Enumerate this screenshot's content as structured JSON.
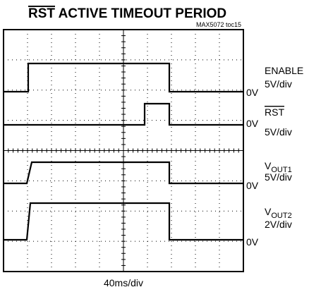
{
  "title": {
    "overlined": "RST",
    "rest": " ACTIVE TIMEOUT PERIOD"
  },
  "note": "MAX5072 toc15",
  "channels": [
    {
      "name": "ENABLE",
      "scale": "5V/div",
      "ground": "0V"
    },
    {
      "name": "RST",
      "scale": "5V/div",
      "ground": "0V"
    },
    {
      "name": {
        "main": "V",
        "sub": "OUT1"
      },
      "scale": "5V/div",
      "ground": "0V"
    },
    {
      "name": {
        "main": "V",
        "sub": "OUT2"
      },
      "scale": "2V/div",
      "ground": "0V"
    }
  ],
  "timebase": "40ms/div"
}
